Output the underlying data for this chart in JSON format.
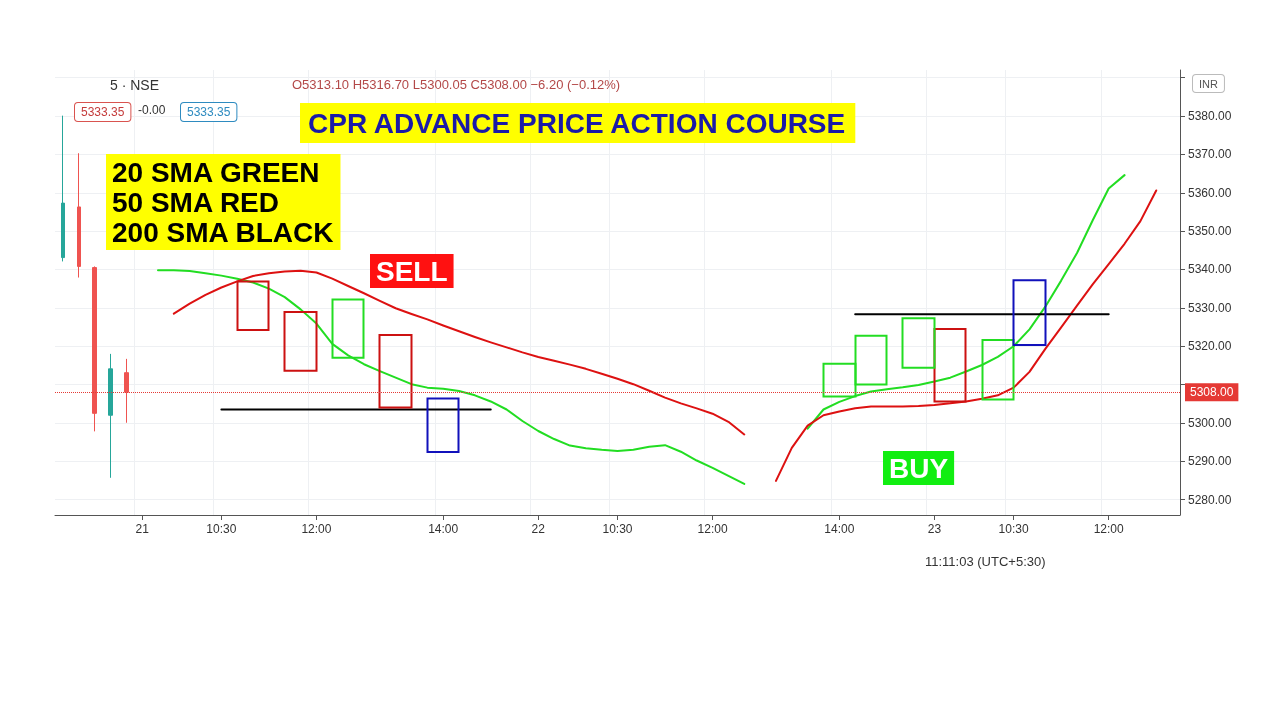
{
  "chart_data": {
    "type": "line",
    "title": "CPR ADVANCE PRICE ACTION COURSE",
    "annotations": [
      "5 · NSE",
      "O5313.10 H5316.70 L5300.05 C5308.00 −6.20 (−0.12%)",
      "5333.35",
      "-0.00",
      "5333.35",
      "20 SMA GREEN\n50 SMA RED\n200 SMA BLACK",
      "INR",
      "11:11:03 (UTC+5:30)",
      "SELL",
      "BUY"
    ],
    "categories": [
      null,
      null,
      null,
      null,
      null,
      "21",
      null,
      null,
      null,
      null,
      "10:30",
      null,
      null,
      null,
      null,
      null,
      "12:00",
      null,
      null,
      null,
      null,
      null,
      null,
      null,
      "14:00",
      null,
      null,
      null,
      null,
      null,
      "22",
      null,
      null,
      null,
      null,
      "10:30",
      null,
      null,
      null,
      null,
      null,
      "12:00",
      null,
      null,
      null,
      null,
      null,
      null,
      null,
      "14:00",
      null,
      null,
      null,
      null,
      null,
      "23",
      null,
      null,
      null,
      null,
      "10:30",
      null,
      null,
      null,
      null,
      null,
      "12:00",
      null,
      null,
      null,
      null
    ],
    "ylim": [
      5276,
      5392
    ],
    "yticks": [
      {
        "value": 5280,
        "label": "5280.00"
      },
      {
        "value": 5290,
        "label": "5290.00"
      },
      {
        "value": 5300,
        "label": "5300.00"
      },
      {
        "value": 5310,
        "label": null
      },
      {
        "value": 5320,
        "label": "5320.00"
      },
      {
        "value": 5330,
        "label": "5330.00"
      },
      {
        "value": 5340,
        "label": "5340.00"
      },
      {
        "value": 5350,
        "label": "5350.00"
      },
      {
        "value": 5360,
        "label": "5360.00"
      },
      {
        "value": 5370,
        "label": "5370.00"
      },
      {
        "value": 5380,
        "label": "5380.00"
      },
      {
        "value": 5390,
        "label": null
      }
    ],
    "grid": true,
    "marker": "none",
    "line_style": "solid",
    "ref_lines": [
      {
        "axis": "y",
        "value": 5308,
        "label": "5308.00",
        "color": "#e53935",
        "line_style": "dotted"
      }
    ],
    "series": [
      {
        "type": "candlestick",
        "ohlc": [
          [
            5343.1,
            5380.1,
            5342.1,
            5357.3
          ],
          [
            5356.3,
            5370.3,
            5337.9,
            5340.8
          ],
          [
            5340.5,
            5340.8,
            5297.8,
            5302.5
          ],
          [
            5302.0,
            5318.0,
            5285.7,
            5314.1
          ],
          [
            5313.1,
            5316.7,
            5300.05,
            5308.0
          ],
          null,
          null,
          null,
          null,
          null,
          null,
          null,
          null,
          null,
          null,
          null,
          null,
          null,
          null,
          null,
          null,
          null,
          null,
          null,
          null,
          null,
          null,
          null,
          null,
          null,
          null,
          null,
          null,
          null,
          null,
          null,
          null,
          null,
          null,
          null,
          null,
          null,
          null,
          null,
          null,
          null,
          null,
          null,
          null,
          null,
          null,
          null,
          null,
          null,
          null,
          null,
          null,
          null,
          null,
          null,
          null,
          null,
          null,
          null,
          null,
          null,
          null,
          null,
          null,
          null,
          null
        ],
        "colors": [
          "#26a69a",
          "#ef5350",
          "#ef5350",
          "#26a69a",
          "#ef5350",
          null,
          null,
          null,
          null,
          null,
          null,
          null,
          null,
          null,
          null,
          null,
          null,
          null,
          null,
          null,
          null,
          null,
          null,
          null,
          null,
          null,
          null,
          null,
          null,
          null,
          null,
          null,
          null,
          null,
          null,
          null,
          null,
          null,
          null,
          null,
          null,
          null,
          null,
          null,
          null,
          null,
          null,
          null,
          null,
          null,
          null,
          null,
          null,
          null,
          null,
          null,
          null,
          null,
          null,
          null,
          null,
          null,
          null,
          null,
          null,
          null,
          null,
          null,
          null,
          null,
          null
        ]
      },
      {
        "type": "line",
        "color": "#22dd22",
        "values": [
          null,
          null,
          null,
          null,
          null,
          null,
          5339.8,
          5339.8,
          5339.6,
          5339.0,
          5338.4,
          5337.6,
          5336.6,
          5335.0,
          5332.8,
          5329.6,
          5325.9,
          5320.6,
          5317.6,
          5315.3,
          5313.5,
          5311.8,
          5310.1,
          5309.2,
          5308.9,
          5308.3,
          5307.2,
          5305.6,
          5303.5,
          5300.5,
          5297.9,
          5295.8,
          5294.1,
          5293.4,
          5293.0,
          5292.7,
          5293.0,
          5293.8,
          5294.2,
          5292.5,
          5290.2,
          5288.3,
          5286.2,
          5284.1,
          null,
          null,
          null,
          5298.5,
          5303.5,
          5305.5,
          5307.0,
          5308.2,
          5308.8,
          5309.3,
          5309.9,
          5310.8,
          5311.8,
          5313.4,
          5315.1,
          5317.2,
          5320.0,
          5324.4,
          5330.3,
          5337.1,
          5344.3,
          5352.9,
          5361.1,
          5364.6,
          null,
          null,
          null
        ]
      },
      {
        "type": "line",
        "color": "#dd1111",
        "values": [
          null,
          null,
          null,
          null,
          null,
          null,
          null,
          5328.5,
          5331.1,
          5333.4,
          5335.3,
          5336.9,
          5338.3,
          5339.0,
          5339.5,
          5339.7,
          5339.2,
          5337.6,
          5335.7,
          5333.8,
          5331.8,
          5329.9,
          5328.4,
          5327.0,
          5325.4,
          5323.9,
          5322.4,
          5321.0,
          5319.7,
          5318.4,
          5317.2,
          5316.2,
          5315.2,
          5314.1,
          5312.8,
          5311.5,
          5310.1,
          5308.4,
          5306.6,
          5305.1,
          5303.8,
          5302.4,
          5300.3,
          5297.0,
          null,
          5284.9,
          5293.5,
          5299.3,
          5302.0,
          5303.0,
          5303.8,
          5304.3,
          5304.3,
          5304.3,
          5304.4,
          5304.7,
          5305.1,
          5305.6,
          5306.3,
          5307.2,
          5309.2,
          5313.3,
          5319.3,
          5324.9,
          5330.6,
          5336.2,
          5341.4,
          5346.7,
          5352.6,
          5360.6,
          null
        ]
      },
      {
        "type": "line",
        "color": "#000000",
        "values": [
          null,
          null,
          null,
          null,
          null,
          null,
          null,
          null,
          null,
          null,
          5303.5,
          5303.5,
          5303.5,
          5303.5,
          5303.5,
          5303.5,
          5303.5,
          5303.5,
          5303.5,
          5303.5,
          5303.5,
          5303.5,
          5303.5,
          5303.5,
          5303.5,
          5303.5,
          5303.5,
          5303.5,
          null,
          null,
          null,
          null,
          null,
          null,
          null,
          null,
          null,
          null,
          null,
          null,
          null,
          null,
          null,
          null,
          null,
          null,
          null,
          null,
          null,
          null,
          null,
          null,
          null,
          null,
          null,
          null,
          null,
          null,
          null,
          null,
          null,
          null,
          null,
          null,
          null,
          null,
          null,
          null,
          null,
          null,
          null
        ]
      },
      {
        "type": "line",
        "color": "#000000",
        "values": [
          null,
          null,
          null,
          null,
          null,
          null,
          null,
          null,
          null,
          null,
          null,
          null,
          null,
          null,
          null,
          null,
          null,
          null,
          null,
          null,
          null,
          null,
          null,
          null,
          null,
          null,
          null,
          null,
          null,
          null,
          null,
          null,
          null,
          null,
          null,
          null,
          null,
          null,
          null,
          null,
          null,
          null,
          null,
          null,
          null,
          null,
          null,
          null,
          null,
          null,
          5328.3,
          5328.3,
          5328.3,
          5328.3,
          5328.3,
          5328.3,
          5328.3,
          5328.3,
          5328.3,
          5328.3,
          5328.3,
          5328.3,
          5328.3,
          5328.3,
          5328.3,
          5328.3,
          5328.3,
          null,
          null,
          null,
          null
        ]
      },
      {
        "type": "candlestick",
        "color": "#cc1111",
        "ohlc": [
          null,
          null,
          null,
          null,
          null,
          null,
          null,
          null,
          null,
          null,
          null,
          null,
          [
            5336.9,
            5336.9,
            5324.2,
            5324.2
          ],
          null,
          null,
          [
            5328.9,
            5328.9,
            5313.6,
            5313.6
          ],
          null,
          null,
          null,
          null,
          null,
          [
            5322.9,
            5322.9,
            5304.0,
            5304.0
          ],
          null,
          null,
          null,
          null,
          null,
          null,
          null,
          null,
          null,
          null,
          null,
          null,
          null,
          null,
          null,
          null,
          null,
          null,
          null,
          null,
          null,
          null,
          null,
          null,
          null,
          null,
          null,
          null,
          null,
          null,
          null,
          null,
          null,
          null,
          [
            5324.5,
            5324.5,
            5305.6,
            5305.6
          ],
          null,
          null,
          null,
          null,
          null,
          null,
          null,
          null,
          null,
          null,
          null,
          null,
          null,
          null
        ]
      },
      {
        "type": "candlestick",
        "color": "#22dd22",
        "ohlc": [
          null,
          null,
          null,
          null,
          null,
          null,
          null,
          null,
          null,
          null,
          null,
          null,
          null,
          null,
          null,
          null,
          null,
          null,
          [
            5317.0,
            5332.2,
            5317.0,
            5332.2
          ],
          null,
          null,
          null,
          null,
          null,
          null,
          null,
          null,
          null,
          null,
          null,
          null,
          null,
          null,
          null,
          null,
          null,
          null,
          null,
          null,
          null,
          null,
          null,
          null,
          null,
          null,
          null,
          null,
          null,
          null,
          [
            5306.9,
            5315.4,
            5306.9,
            5315.4
          ],
          null,
          [
            5310.0,
            5322.7,
            5310.0,
            5322.7
          ],
          null,
          null,
          [
            5314.4,
            5327.3,
            5314.4,
            5327.3
          ],
          null,
          null,
          null,
          null,
          [
            5306.1,
            5321.6,
            5306.1,
            5321.6
          ],
          null,
          null,
          null,
          null,
          null,
          null,
          null,
          null,
          null,
          null,
          null
        ]
      },
      {
        "type": "candlestick",
        "color": "#1111bb",
        "ohlc": [
          null,
          null,
          null,
          null,
          null,
          null,
          null,
          null,
          null,
          null,
          null,
          null,
          null,
          null,
          null,
          null,
          null,
          null,
          null,
          null,
          null,
          null,
          null,
          null,
          [
            5292.4,
            5306.4,
            5292.4,
            5306.4
          ],
          null,
          null,
          null,
          null,
          null,
          null,
          null,
          null,
          null,
          null,
          null,
          null,
          null,
          null,
          null,
          null,
          null,
          null,
          null,
          null,
          null,
          null,
          null,
          null,
          null,
          null,
          null,
          null,
          null,
          null,
          null,
          null,
          null,
          null,
          null,
          null,
          [
            5320.3,
            5337.2,
            5320.3,
            5337.2
          ],
          null,
          null,
          null,
          null,
          null,
          null,
          null,
          null,
          null
        ]
      }
    ]
  }
}
